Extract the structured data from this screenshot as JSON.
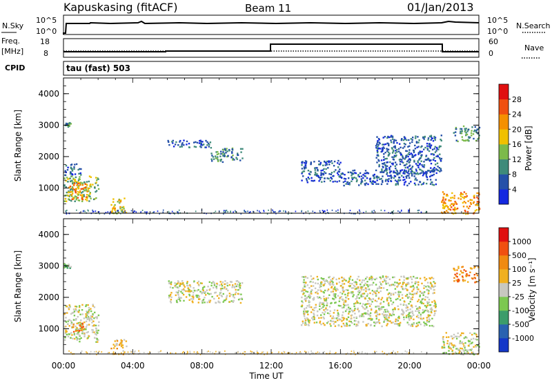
{
  "header": {
    "station": "Kapuskasing (fitACF)",
    "beam": "Beam 11",
    "date": "01/Jan/2013"
  },
  "top_panels": {
    "nsky_label": "N.Sky",
    "nsky_ticks": [
      "10^5",
      "10^0"
    ],
    "nsearch_label": "N.Search",
    "nsearch_ticks": [
      "10^5",
      "10^0"
    ],
    "freq_label": "Freq.",
    "freq_unit": "[MHz]",
    "freq_ticks": [
      "18",
      "8"
    ],
    "nave_label": "Nave",
    "nave_ticks": [
      "60",
      "0"
    ],
    "cpid_label": "CPID",
    "cpid_value": "tau (fast) 503"
  },
  "chart_data": [
    {
      "type": "heatmap",
      "name": "power",
      "ylabel": "Slant Range [km]",
      "ylim": [
        200,
        4500
      ],
      "yticks": [
        "1000",
        "2000",
        "3000",
        "4000"
      ],
      "colorbar": {
        "label": "Power [dB]",
        "ticks": [
          "4",
          "8",
          "12",
          "16",
          "20",
          "24",
          "28"
        ],
        "colors": [
          "#1428e0",
          "#2550a8",
          "#3f8a7a",
          "#7cba4a",
          "#f0c000",
          "#f59000",
          "#f05010",
          "#e01010"
        ]
      },
      "echo_regions": [
        {
          "t": [
            0.0,
            0.4
          ],
          "r": [
            2950,
            3100
          ],
          "level": 2
        },
        {
          "t": [
            0.0,
            1.0
          ],
          "r": [
            1400,
            1800
          ],
          "level": 1
        },
        {
          "t": [
            0.0,
            2.0
          ],
          "r": [
            600,
            1400
          ],
          "level": 3
        },
        {
          "t": [
            0.2,
            1.4
          ],
          "r": [
            650,
            1200
          ],
          "level": 5
        },
        {
          "t": [
            2.7,
            3.6
          ],
          "r": [
            200,
            700
          ],
          "level": 4
        },
        {
          "t": [
            6.0,
            8.5
          ],
          "r": [
            2300,
            2550
          ],
          "level": 1
        },
        {
          "t": [
            8.5,
            10.3
          ],
          "r": [
            1850,
            2300
          ],
          "level": 2
        },
        {
          "t": [
            13.7,
            16.0
          ],
          "r": [
            1200,
            1900
          ],
          "level": 1
        },
        {
          "t": [
            16.0,
            21.5
          ],
          "r": [
            1100,
            1600
          ],
          "level": 1
        },
        {
          "t": [
            18.0,
            21.8
          ],
          "r": [
            1500,
            2700
          ],
          "level": 1
        },
        {
          "t": [
            21.8,
            24.0
          ],
          "r": [
            200,
            900
          ],
          "level": 5
        },
        {
          "t": [
            22.5,
            24.0
          ],
          "r": [
            2500,
            3000
          ],
          "level": 2
        }
      ]
    },
    {
      "type": "heatmap",
      "name": "velocity",
      "ylabel": "Slant Range [km]",
      "ylim": [
        200,
        4500
      ],
      "yticks": [
        "1000",
        "2000",
        "3000",
        "4000"
      ],
      "xlabel": "Time UT",
      "xticks": [
        "00:00",
        "04:00",
        "08:00",
        "12:00",
        "16:00",
        "20:00",
        "00:00"
      ],
      "colorbar": {
        "label": "Velocity [m s⁻¹]",
        "ticks": [
          "1000",
          "500",
          "100",
          "25",
          "-25",
          "-100",
          "-500",
          "-1000"
        ],
        "colors": [
          "#1437c8",
          "#2a62b0",
          "#3c9c6a",
          "#7cc850",
          "#c8c8c0",
          "#f0b020",
          "#f08a10",
          "#f05010",
          "#e01010"
        ]
      },
      "echo_regions": [
        {
          "t": [
            0.0,
            0.4
          ],
          "r": [
            2950,
            3100
          ],
          "level": 3
        },
        {
          "t": [
            0.0,
            2.0
          ],
          "r": [
            600,
            1800
          ],
          "level": 4
        },
        {
          "t": [
            0.5,
            1.2
          ],
          "r": [
            900,
            1200
          ],
          "level": 6
        },
        {
          "t": [
            2.7,
            3.6
          ],
          "r": [
            200,
            700
          ],
          "level": 5
        },
        {
          "t": [
            6.0,
            10.3
          ],
          "r": [
            1850,
            2550
          ],
          "level": 4
        },
        {
          "t": [
            13.7,
            21.5
          ],
          "r": [
            1100,
            2700
          ],
          "level": 4
        },
        {
          "t": [
            21.8,
            24.0
          ],
          "r": [
            200,
            900
          ],
          "level": 4
        },
        {
          "t": [
            22.5,
            24.0
          ],
          "r": [
            2500,
            3000
          ],
          "level": 6
        }
      ]
    }
  ]
}
